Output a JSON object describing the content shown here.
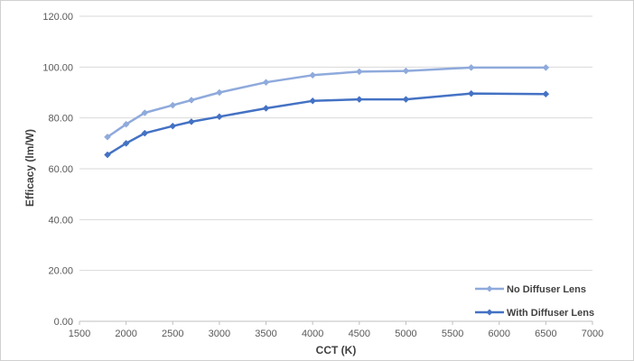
{
  "chart_data": {
    "type": "line",
    "title": "",
    "xlabel": "CCT (K)",
    "ylabel": "Efficacy (lm/W)",
    "xlim": [
      1500,
      7000
    ],
    "ylim": [
      0,
      120
    ],
    "x_ticks": [
      "1500",
      "2000",
      "2500",
      "3000",
      "3500",
      "4000",
      "4500",
      "5000",
      "5500",
      "6000",
      "6500",
      "7000"
    ],
    "y_ticks": [
      "0.00",
      "20.00",
      "40.00",
      "60.00",
      "80.00",
      "100.00",
      "120.00"
    ],
    "grid": "horizontal",
    "legend_position": "bottom-right",
    "x": [
      1800,
      2000,
      2200,
      2500,
      2700,
      3000,
      3500,
      4000,
      4500,
      5000,
      5700,
      6500
    ],
    "series": [
      {
        "name": "No Diffuser Lens",
        "color": "#8faadc",
        "marker": "diamond",
        "values": [
          72.5,
          77.5,
          82.0,
          85.0,
          87.0,
          90.0,
          94.0,
          96.8,
          98.2,
          98.5,
          99.8,
          99.8
        ]
      },
      {
        "name": "With Diffuser Lens",
        "color": "#4472c4",
        "marker": "diamond",
        "values": [
          65.5,
          70.0,
          74.0,
          76.8,
          78.5,
          80.5,
          83.8,
          86.7,
          87.3,
          87.3,
          89.6,
          89.4
        ]
      }
    ]
  }
}
